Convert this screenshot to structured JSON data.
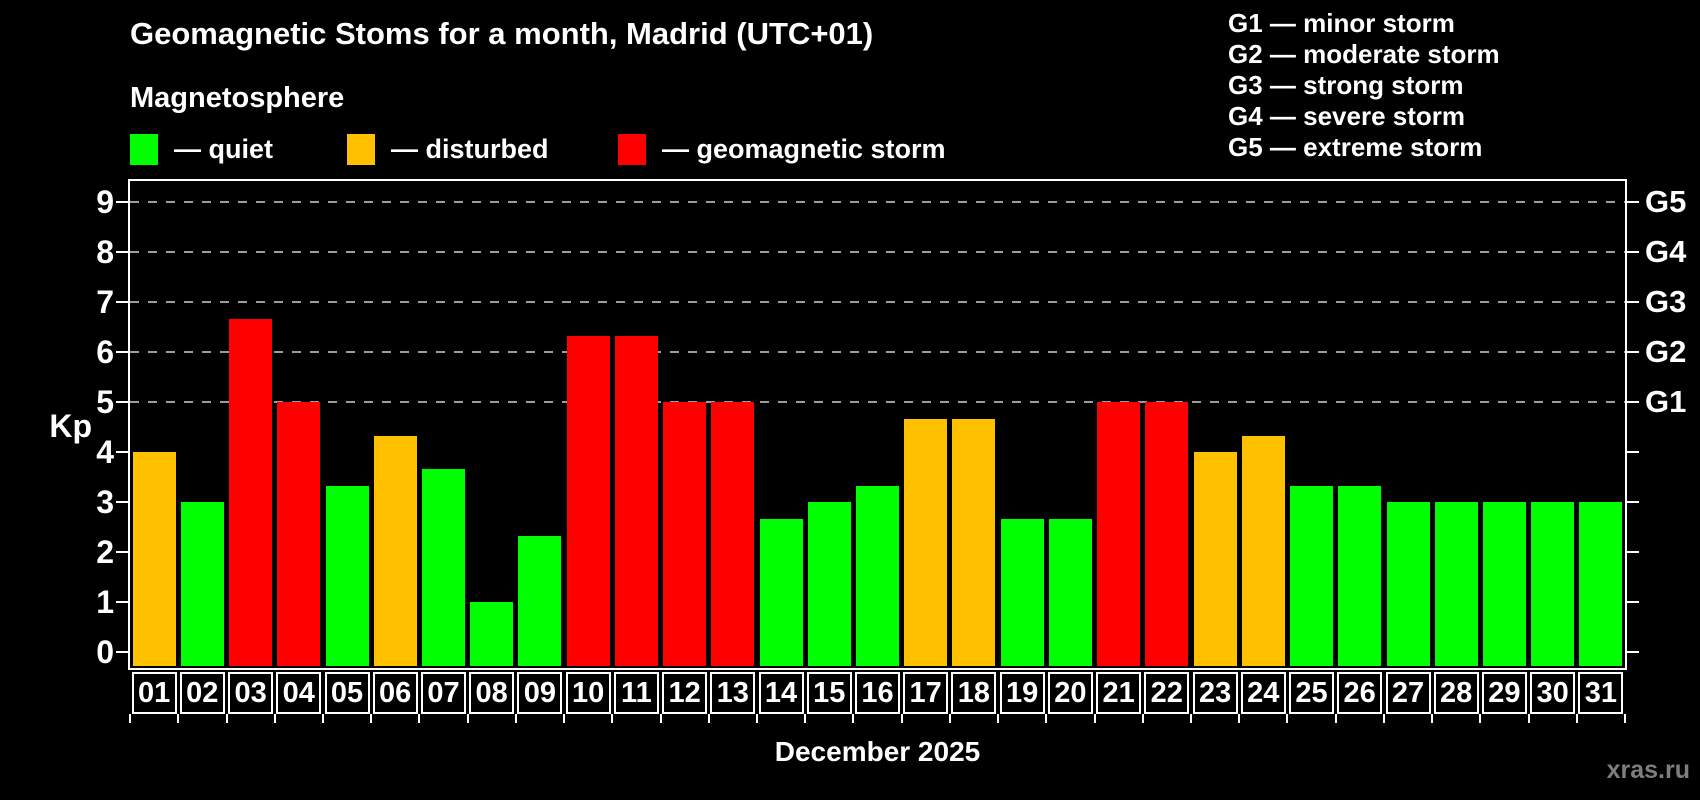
{
  "header": {
    "title": "Geomagnetic Stoms for a month, Madrid (UTC+01)",
    "subtitle": "Magnetosphere",
    "legend": [
      {
        "key": "quiet",
        "label": "— quiet",
        "color": "#00ff00"
      },
      {
        "key": "disturbed",
        "label": "— disturbed",
        "color": "#ffc000"
      },
      {
        "key": "storm",
        "label": "— geomagnetic storm",
        "color": "#ff0000"
      }
    ],
    "g_legend": [
      "G1 — minor storm",
      "G2 — moderate storm",
      "G3 — strong storm",
      "G4 — severe storm",
      "G5 — extreme storm"
    ]
  },
  "chart_data": {
    "type": "bar",
    "title": "Geomagnetic Stoms for a month, Madrid (UTC+01)",
    "subtitle": "Magnetosphere",
    "xlabel": "December 2025",
    "ylabel": "Kp",
    "ylim": [
      0,
      9
    ],
    "yticks": [
      0,
      1,
      2,
      3,
      4,
      5,
      6,
      7,
      8,
      9
    ],
    "gridlines_kp": [
      5,
      6,
      7,
      8,
      9
    ],
    "grid_style": "dashed horizontal gray lines at storm levels G1–G5",
    "legend_position": "top-left",
    "right_axis": [
      {
        "kp": 5,
        "label": "G1"
      },
      {
        "kp": 6,
        "label": "G2"
      },
      {
        "kp": 7,
        "label": "G3"
      },
      {
        "kp": 8,
        "label": "G4"
      },
      {
        "kp": 9,
        "label": "G5"
      }
    ],
    "categories": [
      "01",
      "02",
      "03",
      "04",
      "05",
      "06",
      "07",
      "08",
      "09",
      "10",
      "11",
      "12",
      "13",
      "14",
      "15",
      "16",
      "17",
      "18",
      "19",
      "20",
      "21",
      "22",
      "23",
      "24",
      "25",
      "26",
      "27",
      "28",
      "29",
      "30",
      "31"
    ],
    "values": [
      4,
      3,
      6.67,
      5,
      3.33,
      4.33,
      3.67,
      1,
      2.33,
      6.33,
      6.33,
      5,
      5,
      2.67,
      3,
      3.33,
      4.67,
      4.67,
      2.67,
      2.67,
      5,
      5,
      4,
      4.33,
      3.33,
      3.33,
      3,
      3,
      3,
      3,
      3
    ],
    "statuses": [
      "disturbed",
      "quiet",
      "storm",
      "storm",
      "quiet",
      "disturbed",
      "quiet",
      "quiet",
      "quiet",
      "storm",
      "storm",
      "storm",
      "storm",
      "quiet",
      "quiet",
      "quiet",
      "disturbed",
      "disturbed",
      "quiet",
      "quiet",
      "storm",
      "storm",
      "disturbed",
      "disturbed",
      "quiet",
      "quiet",
      "quiet",
      "quiet",
      "quiet",
      "quiet",
      "quiet"
    ],
    "status_colors": {
      "quiet": "#00ff00",
      "disturbed": "#ffc000",
      "storm": "#ff0000"
    }
  },
  "colors": {
    "background": "#000000",
    "axis": "#ffffff",
    "grid": "#9c9c9c",
    "watermark": "#7e7e7e"
  },
  "footer": {
    "xaxis_title": "December 2025",
    "watermark": "xras.ru"
  }
}
